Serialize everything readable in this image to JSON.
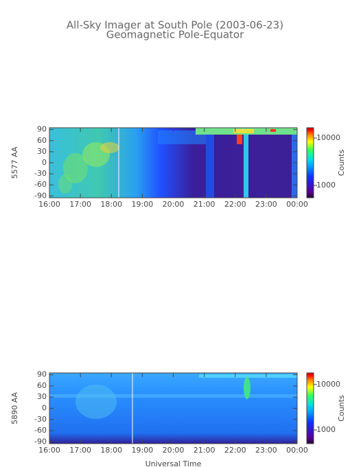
{
  "title": "All-Sky Imager at South Pole (2003-06-23)",
  "subtitle": "Geomagnetic Pole-Equator",
  "chart_data": [
    {
      "type": "heatmap",
      "ylabel": "5577 AA",
      "xlim": [
        16,
        24
      ],
      "xticks": [
        {
          "value": 16,
          "label": "16:00"
        },
        {
          "value": 17,
          "label": "17:00"
        },
        {
          "value": 18,
          "label": "18:00"
        },
        {
          "value": 19,
          "label": "19:00"
        },
        {
          "value": 20,
          "label": "20:00"
        },
        {
          "value": 21,
          "label": "21:00"
        },
        {
          "value": 22,
          "label": "22:00"
        },
        {
          "value": 23,
          "label": "23:00"
        },
        {
          "value": 24,
          "label": "00:00"
        }
      ],
      "ylim": [
        -95,
        95
      ],
      "yticks": [
        -90,
        -60,
        -30,
        0,
        30,
        60,
        90
      ],
      "colorbar_label": "Counts",
      "colorbar_log": true,
      "clim": [
        550,
        16500
      ],
      "cticks": [
        1000,
        10000
      ]
    },
    {
      "type": "heatmap",
      "ylabel": "5890 AA",
      "xlabel": "Universal Time",
      "xlim": [
        16,
        24
      ],
      "xticks": [
        {
          "value": 16,
          "label": "16:00"
        },
        {
          "value": 17,
          "label": "17:00"
        },
        {
          "value": 18,
          "label": "18:00"
        },
        {
          "value": 19,
          "label": "19:00"
        },
        {
          "value": 20,
          "label": "20:00"
        },
        {
          "value": 21,
          "label": "21:00"
        },
        {
          "value": 22,
          "label": "22:00"
        },
        {
          "value": 23,
          "label": "23:00"
        },
        {
          "value": 24,
          "label": "00:00"
        }
      ],
      "ylim": [
        -95,
        95
      ],
      "yticks": [
        -90,
        -60,
        -30,
        0,
        30,
        60,
        90
      ],
      "colorbar_label": "Counts",
      "colorbar_log": true,
      "clim": [
        500,
        18000
      ],
      "cticks": [
        1000,
        10000
      ]
    }
  ]
}
